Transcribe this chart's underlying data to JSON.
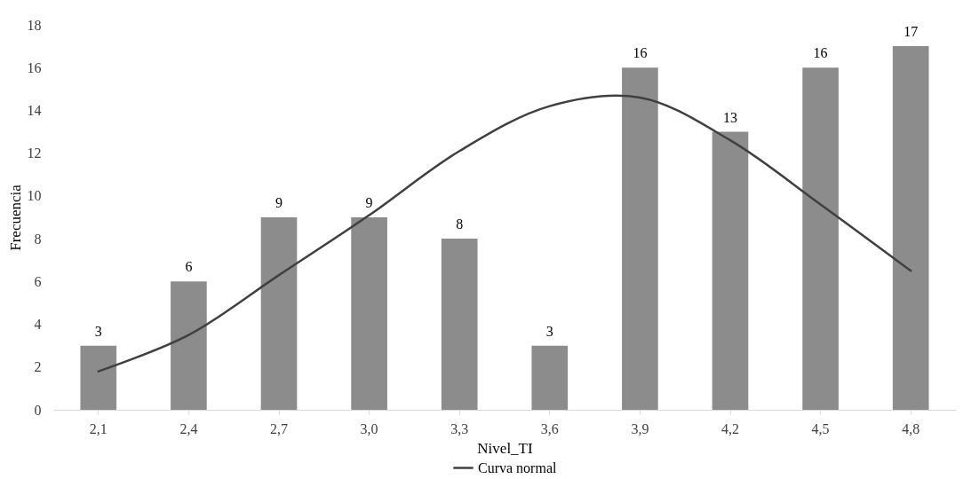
{
  "chart_data": {
    "type": "bar",
    "xlabel": "Nivel_TI",
    "ylabel": "Frecuencia",
    "categories": [
      "2,1",
      "2,4",
      "2,7",
      "3,0",
      "3,3",
      "3,6",
      "3,9",
      "4,2",
      "4,5",
      "4,8"
    ],
    "series": [
      {
        "color": "#8c8c8c",
        "values": [
          3,
          6,
          9,
          9,
          8,
          3,
          16,
          13,
          16,
          17
        ],
        "value_labels": [
          "3",
          "6",
          "9",
          "9",
          "8",
          "3",
          "16",
          "13",
          "16",
          "17"
        ]
      },
      {
        "type": "line",
        "name": "Curva normal",
        "color": "#404040",
        "values": [
          1.8,
          3.5,
          6.3,
          9.1,
          12.1,
          14.2,
          14.6,
          12.6,
          9.6,
          6.5
        ]
      }
    ],
    "ylim": [
      0,
      18
    ],
    "yticks": [
      0,
      2,
      4,
      6,
      8,
      10,
      12,
      14,
      16,
      18
    ],
    "grid": false,
    "legend": "bottom"
  }
}
